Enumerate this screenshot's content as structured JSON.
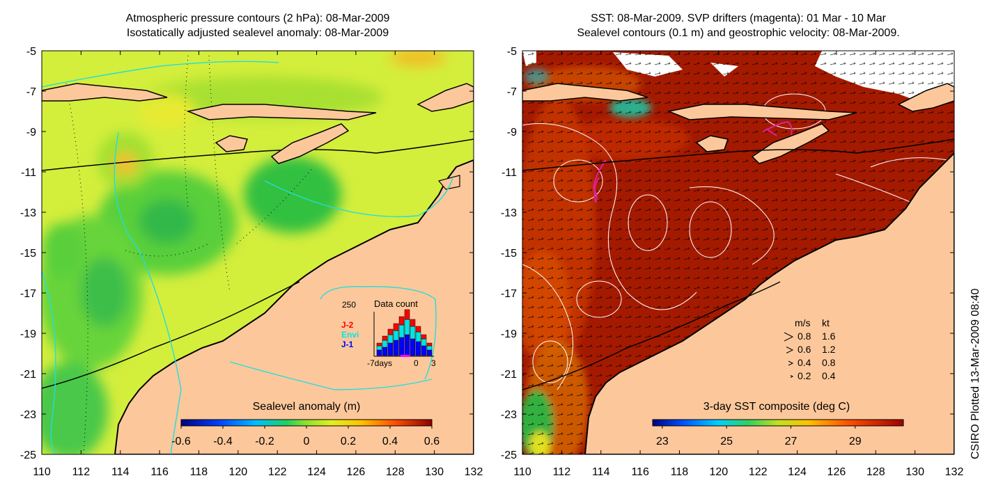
{
  "left_panel": {
    "title_line1": "Atmospheric pressure contours (2 hPa): 08-Mar-2009",
    "title_line2": "Isostatically adjusted sealevel anomaly: 08-Mar-2009",
    "colorbar_label": "Sealevel anomaly (m)",
    "colorbar_ticks": [
      "-0.6",
      "-0.4",
      "-0.2",
      "0",
      "0.2",
      "0.4",
      "0.6"
    ],
    "inset": {
      "title": "Data count",
      "ymax": "250",
      "legend": [
        {
          "label": "J-2",
          "color": "#ff0000"
        },
        {
          "label": "Envi",
          "color": "#00e5e5"
        },
        {
          "label": "J-1",
          "color": "#0000ff"
        }
      ],
      "xlabels": [
        "-7days",
        "0",
        "3"
      ]
    }
  },
  "right_panel": {
    "title_line1": "SST: 08-Mar-2009. SVP drifters (magenta): 01 Mar - 10 Mar",
    "title_line2": "Sealevel contours (0.1 m) and geostrophic velocity: 08-Mar-2009.",
    "colorbar_label": "3-day SST composite (deg C)",
    "colorbar_ticks": [
      "23",
      "25",
      "27",
      "29"
    ],
    "velocity_legend": {
      "header_ms": "m/s",
      "header_kt": "kt",
      "rows": [
        {
          "ms": "0.8",
          "kt": "1.6"
        },
        {
          "ms": "0.6",
          "kt": "1.2"
        },
        {
          "ms": "0.4",
          "kt": "0.8"
        },
        {
          "ms": "0.2",
          "kt": "0.4"
        }
      ]
    }
  },
  "axes": {
    "y_ticks": [
      "-5",
      "-7",
      "-9",
      "-11",
      "-13",
      "-15",
      "-17",
      "-19",
      "-21",
      "-23",
      "-25"
    ],
    "x_ticks": [
      "110",
      "112",
      "114",
      "116",
      "118",
      "120",
      "122",
      "124",
      "126",
      "128",
      "130",
      "132"
    ]
  },
  "credit": "CSIRO Plotted 13-Mar-2009 08:40",
  "colors": {
    "land": "#fcc89b",
    "warm_sst": "#a01a00",
    "sla_background": "#d2ee3a"
  }
}
